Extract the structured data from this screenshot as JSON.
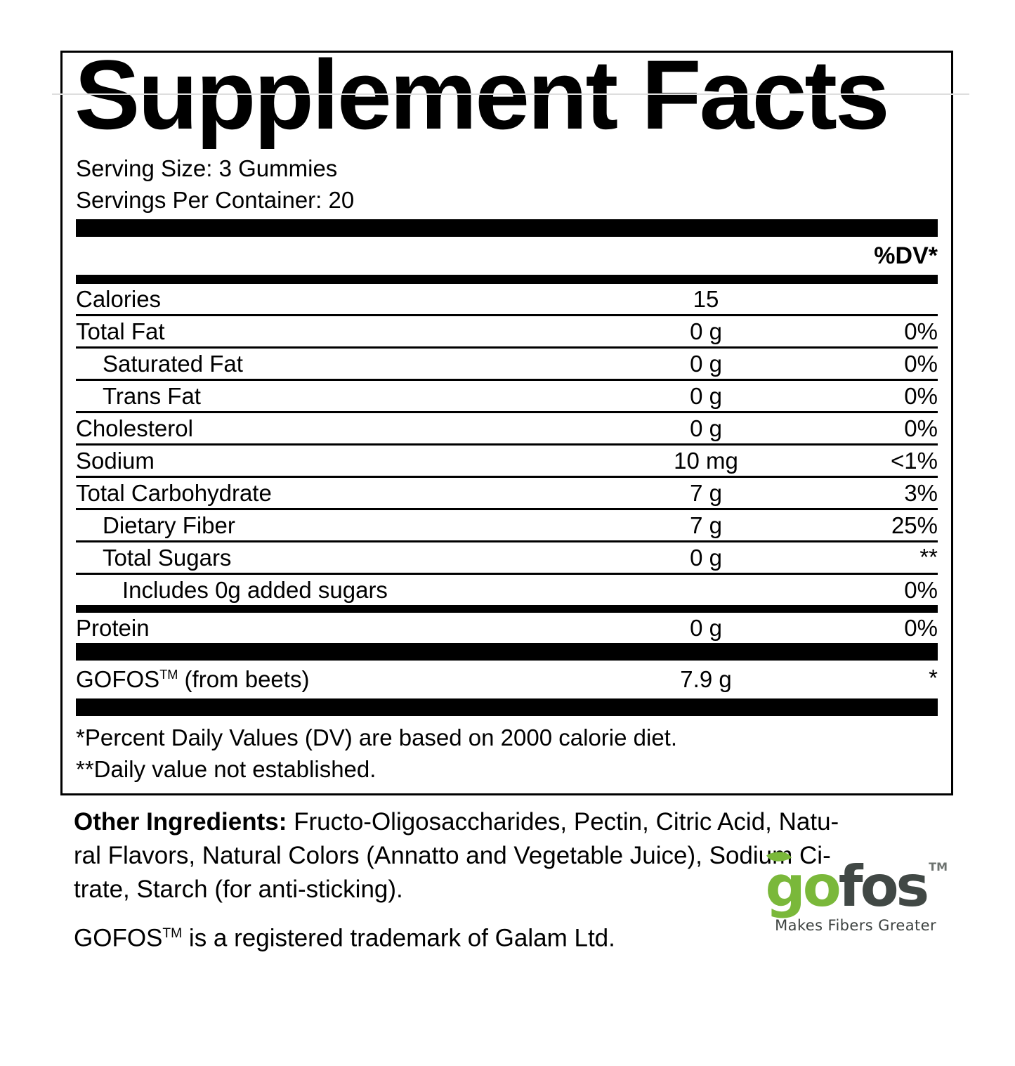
{
  "panel": {
    "title": "Supplement Facts",
    "serving_size": "Serving Size: 3 Gummies",
    "servings_per_container": "Servings Per Container: 20",
    "dv_header": "%DV*",
    "rows": [
      {
        "label": "Calories",
        "amount": "15",
        "dv": ""
      },
      {
        "label": "Total Fat",
        "amount": "0 g",
        "dv": "0%"
      },
      {
        "label": "Saturated Fat",
        "amount": "0 g",
        "dv": "0%"
      },
      {
        "label": "Trans Fat",
        "amount": "0 g",
        "dv": "0%"
      },
      {
        "label": "Cholesterol",
        "amount": "0 g",
        "dv": "0%"
      },
      {
        "label": "Sodium",
        "amount": "10 mg",
        "dv": "<1%"
      },
      {
        "label": "Total Carbohydrate",
        "amount": "7 g",
        "dv": "3%"
      },
      {
        "label": "Dietary Fiber",
        "amount": "7 g",
        "dv": "25%"
      },
      {
        "label": "Total Sugars",
        "amount": "0 g",
        "dv": "**"
      },
      {
        "label": "Includes 0g added sugars",
        "amount": "",
        "dv": "0%"
      }
    ],
    "protein_row": {
      "label": "Protein",
      "amount": "0 g",
      "dv": "0%"
    },
    "gofos_row": {
      "name": "GOFOS",
      "tm": "TM",
      "suffix": " (from beets)",
      "amount": "7.9 g",
      "dv": "*"
    },
    "footnotes": [
      "*Percent Daily Values (DV) are based on 2000 calorie diet.",
      "**Daily value not established."
    ]
  },
  "below": {
    "other_ingredients": {
      "label": "Other Ingredients:",
      "line1_rest": " Fructo-Oligosaccharides, Pectin, Citric Acid, Natu-",
      "line2": "ral Flavors, Natural Colors (Annatto and Vegetable Juice), Sodium Ci-",
      "line3": "trate, Starch (for anti-sticking)."
    },
    "trademark": {
      "name": "GOFOS",
      "tm": "TM",
      "rest": " is a registered trademark of Galam Ltd."
    },
    "logo": {
      "word_green": "go",
      "word_dark": "fos",
      "tm": "TM",
      "tagline": "Makes Fibers Greater",
      "green": "#7ab83a",
      "charcoal": "#414845",
      "tagline_color": "#3d4240"
    }
  }
}
